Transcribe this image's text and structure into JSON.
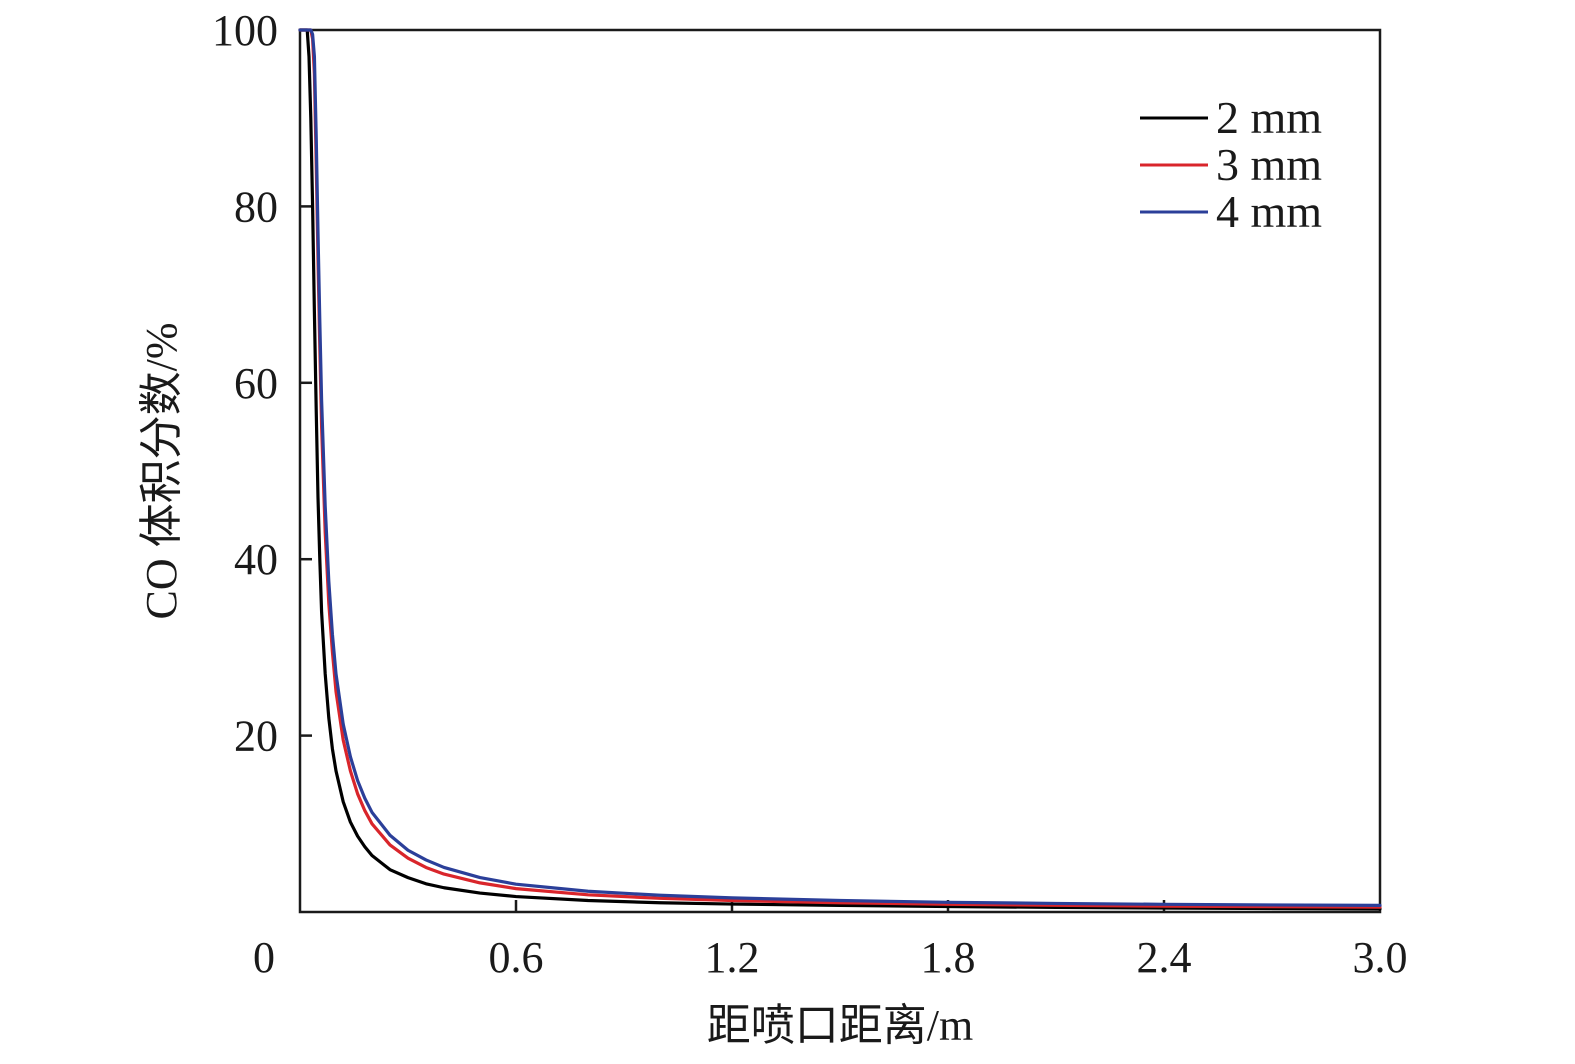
{
  "chart_data": {
    "type": "line",
    "title": "",
    "xlabel": "距喷口距离/m",
    "ylabel": "CO 体积分数/%",
    "xlim": [
      0,
      3.0
    ],
    "ylim": [
      0,
      100
    ],
    "x_ticks": [
      0,
      0.6,
      1.2,
      1.8,
      2.4,
      3.0
    ],
    "x_tick_labels": [
      "0",
      "0.6",
      "1.2",
      "1.8",
      "2.4",
      "3.0"
    ],
    "y_ticks": [
      20,
      40,
      60,
      80,
      100
    ],
    "y_tick_labels": [
      "20",
      "40",
      "60",
      "80",
      "100"
    ],
    "grid": false,
    "legend_position": "top-right",
    "series": [
      {
        "name": "2 mm",
        "color": "#000000",
        "x": [
          0,
          0.01,
          0.02,
          0.025,
          0.03,
          0.035,
          0.04,
          0.045,
          0.05,
          0.055,
          0.06,
          0.07,
          0.08,
          0.09,
          0.1,
          0.12,
          0.14,
          0.16,
          0.18,
          0.2,
          0.25,
          0.3,
          0.35,
          0.4,
          0.5,
          0.6,
          0.8,
          1.0,
          1.2,
          1.5,
          1.8,
          2.1,
          2.4,
          2.7,
          3.0
        ],
        "y": [
          100,
          100,
          100,
          97,
          90,
          80,
          68,
          57,
          47,
          40,
          34,
          27,
          22,
          18.5,
          16,
          12.5,
          10.2,
          8.6,
          7.4,
          6.4,
          4.8,
          3.9,
          3.2,
          2.75,
          2.15,
          1.75,
          1.3,
          1.05,
          0.9,
          0.75,
          0.62,
          0.52,
          0.45,
          0.4,
          0.35
        ]
      },
      {
        "name": "3 mm",
        "color": "#d9252b",
        "x": [
          0,
          0.01,
          0.02,
          0.03,
          0.035,
          0.04,
          0.045,
          0.05,
          0.055,
          0.06,
          0.07,
          0.08,
          0.09,
          0.1,
          0.12,
          0.14,
          0.16,
          0.18,
          0.2,
          0.25,
          0.3,
          0.35,
          0.4,
          0.5,
          0.6,
          0.8,
          1.0,
          1.2,
          1.5,
          1.8,
          2.1,
          2.4,
          2.7,
          3.0
        ],
        "y": [
          100,
          100,
          100,
          100,
          99,
          95,
          85,
          74,
          64,
          55,
          43,
          35,
          29.5,
          25,
          19.5,
          16,
          13.4,
          11.5,
          10,
          7.6,
          6.1,
          5.05,
          4.3,
          3.3,
          2.65,
          1.95,
          1.55,
          1.3,
          1.05,
          0.88,
          0.76,
          0.66,
          0.6,
          0.55
        ]
      },
      {
        "name": "4 mm",
        "color": "#2b3f99",
        "x": [
          0,
          0.01,
          0.02,
          0.03,
          0.035,
          0.04,
          0.045,
          0.05,
          0.055,
          0.06,
          0.07,
          0.08,
          0.09,
          0.1,
          0.12,
          0.14,
          0.16,
          0.18,
          0.2,
          0.25,
          0.3,
          0.35,
          0.4,
          0.5,
          0.6,
          0.8,
          1.0,
          1.2,
          1.5,
          1.8,
          2.1,
          2.4,
          2.7,
          3.0
        ],
        "y": [
          100,
          100,
          100,
          100,
          99.5,
          97,
          88,
          77,
          67,
          58,
          46,
          37.5,
          31.5,
          27,
          21.3,
          17.6,
          14.9,
          12.9,
          11.3,
          8.7,
          7.0,
          5.9,
          5.05,
          3.9,
          3.15,
          2.35,
          1.9,
          1.6,
          1.3,
          1.1,
          0.97,
          0.87,
          0.8,
          0.75
        ]
      }
    ]
  }
}
